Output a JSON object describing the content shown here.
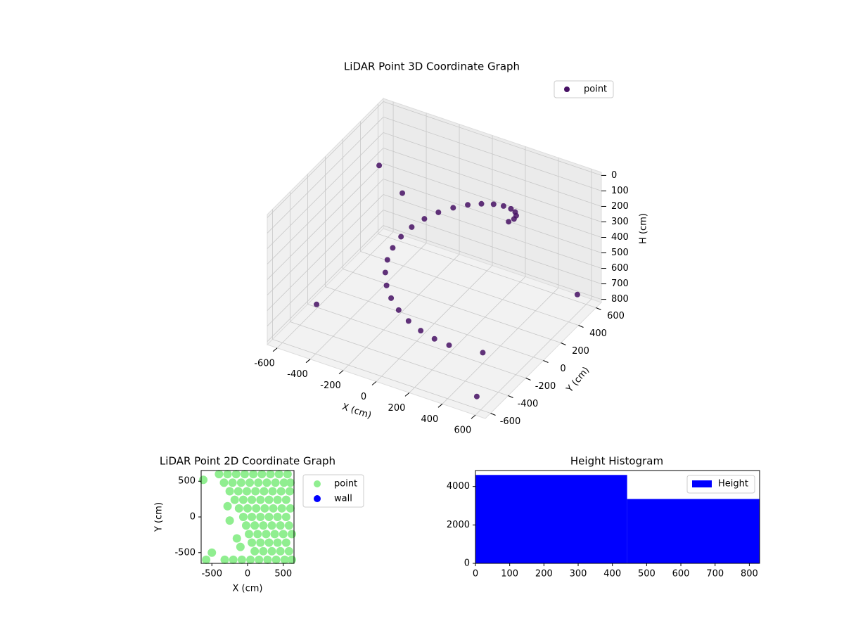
{
  "chart_data": [
    {
      "type": "scatter3d",
      "title": "LiDAR Point 3D Coordinate Graph",
      "x_label": "X (cm)",
      "y_label": "Y (cm)",
      "z_label": "H (cm)",
      "xlim": [
        -660,
        660
      ],
      "ylim": [
        -660,
        660
      ],
      "zlim": [
        820,
        -20
      ],
      "xticks": [
        -600,
        -400,
        -200,
        0,
        200,
        400,
        600
      ],
      "yticks": [
        -600,
        -400,
        -200,
        0,
        200,
        400,
        600
      ],
      "zticks": [
        0,
        100,
        200,
        300,
        400,
        500,
        600,
        700,
        800
      ],
      "grid": true,
      "legend": "upper right",
      "series": [
        {
          "name": "point",
          "color": "#471164",
          "x": [
            450,
            441,
            415,
            373,
            318,
            251,
            177,
            99,
            21,
            -53,
            -120,
            -175,
            -216,
            -242,
            -250,
            -241,
            -214,
            -171,
            -114,
            -47,
            26,
            104,
            182,
            256,
            -600,
            -500,
            550,
            600,
            -300,
            400
          ],
          "y": [
            0,
            78,
            152,
            219,
            274,
            316,
            342,
            350,
            341,
            314,
            272,
            216,
            149,
            76,
            -3,
            -81,
            -155,
            -222,
            -277,
            -317,
            -342,
            -350,
            -340,
            -313,
            500,
            -400,
            -550,
            500,
            200,
            -200
          ],
          "z": [
            0,
            30,
            60,
            90,
            120,
            150,
            180,
            210,
            240,
            270,
            300,
            330,
            360,
            390,
            420,
            450,
            480,
            510,
            540,
            570,
            600,
            630,
            660,
            690,
            300,
            650,
            780,
            700,
            200,
            750
          ]
        }
      ]
    },
    {
      "type": "scatter",
      "title": "LiDAR Point 2D Coordinate Graph",
      "x_label": "X (cm)",
      "y_label": "Y (cm)",
      "xlim": [
        -650,
        650
      ],
      "ylim": [
        -650,
        650
      ],
      "xticks": [
        -500,
        0,
        500
      ],
      "yticks": [
        -500,
        0,
        500
      ],
      "legend": "outside upper right",
      "series": [
        {
          "name": "point",
          "color": "#90ee90",
          "x": [
            -400,
            -280,
            -160,
            -40,
            80,
            200,
            320,
            440,
            560,
            -330,
            -210,
            -90,
            30,
            150,
            270,
            390,
            510,
            600,
            -250,
            -130,
            -10,
            110,
            230,
            350,
            470,
            590,
            -180,
            -60,
            60,
            180,
            300,
            420,
            540,
            -120,
            0,
            120,
            240,
            360,
            480,
            600,
            -60,
            60,
            180,
            300,
            420,
            540,
            -20,
            100,
            220,
            340,
            460,
            580,
            20,
            140,
            260,
            380,
            500,
            620,
            60,
            180,
            300,
            420,
            540,
            100,
            220,
            340,
            460,
            580,
            -320,
            -200,
            -80,
            40,
            160,
            280,
            400,
            520,
            620,
            -620,
            -280,
            -250,
            -150,
            -100,
            -500,
            -580
          ],
          "y": [
            600,
            600,
            600,
            600,
            600,
            600,
            600,
            600,
            600,
            480,
            480,
            480,
            480,
            480,
            480,
            480,
            480,
            480,
            360,
            360,
            360,
            360,
            360,
            360,
            360,
            360,
            240,
            240,
            240,
            240,
            240,
            240,
            240,
            120,
            120,
            120,
            120,
            120,
            120,
            120,
            0,
            0,
            0,
            0,
            0,
            0,
            -120,
            -120,
            -120,
            -120,
            -120,
            -120,
            -240,
            -240,
            -240,
            -240,
            -240,
            -240,
            -360,
            -360,
            -360,
            -360,
            -360,
            -480,
            -480,
            -480,
            -480,
            -480,
            -600,
            -600,
            -600,
            -600,
            -600,
            -600,
            -600,
            -600,
            -600,
            520,
            150,
            -50,
            -300,
            -420,
            -500,
            -600
          ]
        },
        {
          "name": "wall",
          "color": "#0000ff",
          "x": [],
          "y": []
        }
      ]
    },
    {
      "type": "histogram",
      "title": "Height Histogram",
      "bins": [
        0,
        443,
        830
      ],
      "values": [
        4600,
        3350
      ],
      "color": "#0000ff",
      "series_name": "Height",
      "legend": "upper right",
      "xlim": [
        0,
        830
      ],
      "ylim": [
        0,
        4830
      ],
      "xticks": [
        0,
        100,
        200,
        300,
        400,
        500,
        600,
        700,
        800
      ],
      "yticks": [
        0,
        2000,
        4000
      ]
    }
  ]
}
